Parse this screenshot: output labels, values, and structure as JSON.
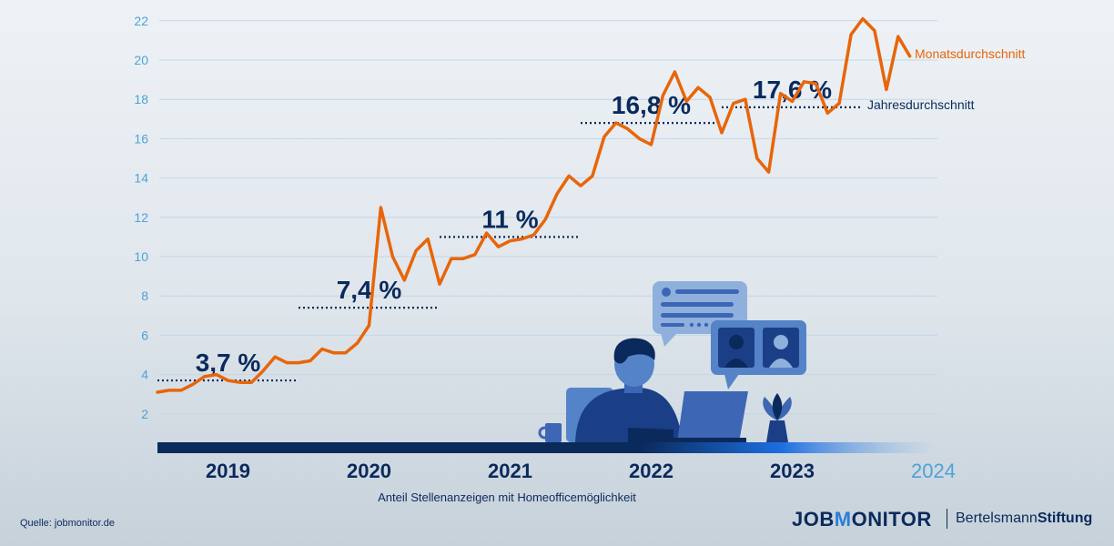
{
  "chart_data": {
    "type": "line",
    "xlabel": "Anteil Stellenanzeigen mit Homeofficemöglichkeit",
    "ylabel": "",
    "ylim": [
      0,
      22
    ],
    "y_ticks": [
      2,
      4,
      6,
      8,
      10,
      12,
      14,
      16,
      18,
      20,
      22
    ],
    "years": [
      "2019",
      "2020",
      "2021",
      "2022",
      "2023",
      "2024"
    ],
    "grid": true,
    "series": [
      {
        "name": "Monatsdurchschnitt",
        "color": "#e8650a",
        "x": [
          2019.0,
          2019.083,
          2019.167,
          2019.25,
          2019.333,
          2019.417,
          2019.5,
          2019.583,
          2019.667,
          2019.75,
          2019.833,
          2019.917,
          2020.0,
          2020.083,
          2020.167,
          2020.25,
          2020.333,
          2020.417,
          2020.5,
          2020.583,
          2020.667,
          2020.75,
          2020.833,
          2020.917,
          2021.0,
          2021.083,
          2021.167,
          2021.25,
          2021.333,
          2021.417,
          2021.5,
          2021.583,
          2021.667,
          2021.75,
          2021.833,
          2021.917,
          2022.0,
          2022.083,
          2022.167,
          2022.25,
          2022.333,
          2022.417,
          2022.5,
          2022.583,
          2022.667,
          2022.75,
          2022.833,
          2022.917,
          2023.0,
          2023.083,
          2023.167,
          2023.25,
          2023.333,
          2023.417,
          2023.5,
          2023.583,
          2023.667,
          2023.75,
          2023.833,
          2023.917,
          2024.0,
          2024.083,
          2024.167,
          2024.25,
          2024.333
        ],
        "values": [
          3.1,
          3.2,
          3.2,
          3.5,
          3.9,
          4.0,
          3.7,
          3.6,
          3.6,
          4.2,
          4.9,
          4.6,
          4.6,
          4.7,
          5.3,
          5.1,
          5.1,
          5.6,
          6.5,
          12.5,
          10.0,
          8.8,
          10.3,
          10.9,
          8.6,
          9.9,
          9.9,
          10.1,
          11.2,
          10.5,
          10.8,
          10.9,
          11.1,
          11.9,
          13.2,
          14.1,
          13.6,
          14.1,
          16.1,
          16.8,
          16.5,
          16.0,
          15.7,
          18.2,
          19.4,
          17.9,
          18.6,
          18.1,
          16.3,
          17.8,
          18.0,
          15.0,
          14.3,
          18.3,
          17.9,
          18.9,
          18.8,
          17.3,
          17.8,
          21.3,
          22.1,
          21.5,
          18.5,
          21.2,
          20.2
        ]
      },
      {
        "name": "Jahresdurchschnitt",
        "color": "#0b2a5c",
        "values": [
          3.7,
          7.4,
          11.0,
          16.8,
          17.6
        ],
        "labels": [
          "3,7 %",
          "7,4 %",
          "11 %",
          "16,8 %",
          "17,6 %"
        ]
      }
    ]
  },
  "source": "Quelle: jobmonitor.de",
  "brand": {
    "job": "JOB",
    "m": "M",
    "rest": "ONITOR",
    "bs_light": "Bertelsmann",
    "bs_bold": "Stiftung"
  }
}
